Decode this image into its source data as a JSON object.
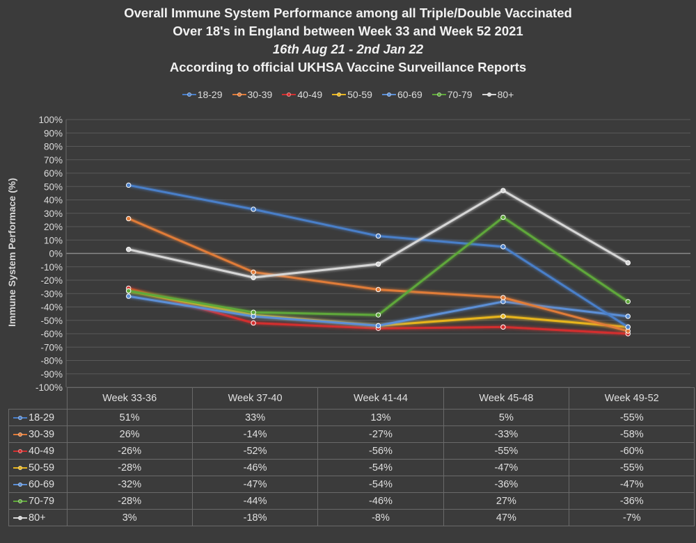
{
  "header": {
    "title_line1": "Overall Immune System Performance among all Triple/Double Vaccinated",
    "title_line2": "Over 18's in England between Week 33 and Week 52 2021",
    "subtitle": "16th Aug 21 - 2nd Jan 22",
    "source_line": "According to official UKHSA Vaccine Surveillance Reports"
  },
  "chart_data": {
    "type": "line",
    "ylabel": "Immune System Performace (%)",
    "ylim": [
      -100,
      100
    ],
    "ytick_step": 10,
    "yticks": [
      "100%",
      "90%",
      "80%",
      "70%",
      "60%",
      "50%",
      "40%",
      "30%",
      "20%",
      "10%",
      "0%",
      "-10%",
      "-20%",
      "-30%",
      "-40%",
      "-50%",
      "-60%",
      "-70%",
      "-80%",
      "-90%",
      "-100%"
    ],
    "grid": true,
    "legend_position": "top",
    "categories": [
      "Week 33-36",
      "Week 37-40",
      "Week 41-44",
      "Week 45-48",
      "Week 49-52"
    ],
    "series": [
      {
        "name": "18-29",
        "color": "#4a7fc9",
        "values": [
          51,
          33,
          13,
          5,
          -55
        ],
        "labels": [
          "51%",
          "33%",
          "13%",
          "5%",
          "-55%"
        ]
      },
      {
        "name": "30-39",
        "color": "#e07b39",
        "values": [
          26,
          -14,
          -27,
          -33,
          -58
        ],
        "labels": [
          "26%",
          "-14%",
          "-27%",
          "-33%",
          "-58%"
        ]
      },
      {
        "name": "40-49",
        "color": "#d32f2f",
        "values": [
          -26,
          -52,
          -56,
          -55,
          -60
        ],
        "labels": [
          "-26%",
          "-52%",
          "-56%",
          "-55%",
          "-60%"
        ]
      },
      {
        "name": "50-59",
        "color": "#e8b51f",
        "values": [
          -28,
          -46,
          -54,
          -47,
          -55
        ],
        "labels": [
          "-28%",
          "-46%",
          "-54%",
          "-47%",
          "-55%"
        ]
      },
      {
        "name": "60-69",
        "color": "#5b8fd6",
        "values": [
          -32,
          -47,
          -54,
          -36,
          -47
        ],
        "labels": [
          "-32%",
          "-47%",
          "-54%",
          "-36%",
          "-47%"
        ]
      },
      {
        "name": "70-79",
        "color": "#5fa83a",
        "values": [
          -28,
          -44,
          -46,
          27,
          -36
        ],
        "labels": [
          "-28%",
          "-44%",
          "-46%",
          "27%",
          "-36%"
        ]
      },
      {
        "name": "80+",
        "color": "#d6d6d6",
        "values": [
          3,
          -18,
          -8,
          47,
          -7
        ],
        "labels": [
          "3%",
          "-18%",
          "-8%",
          "47%",
          "-7%"
        ]
      }
    ]
  }
}
